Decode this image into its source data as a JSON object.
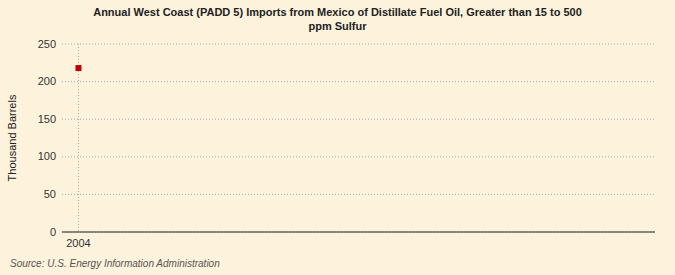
{
  "chart_data": {
    "type": "scatter",
    "title": "Annual West Coast (PADD 5) Imports from Mexico of Distillate Fuel Oil, Greater than 15 to 500\nppm Sulfur",
    "ylabel": "Thousand Barrels",
    "source": "Source: U.S. Energy Information Administration",
    "x": [
      2004
    ],
    "values": [
      218
    ],
    "color": "#c00000",
    "marker": "square",
    "xlim": [
      2003.4,
      2025
    ],
    "xticks": [
      2004
    ],
    "ylim": [
      0,
      250
    ],
    "yticks": [
      0,
      50,
      100,
      150,
      200,
      250
    ],
    "grid": true
  }
}
